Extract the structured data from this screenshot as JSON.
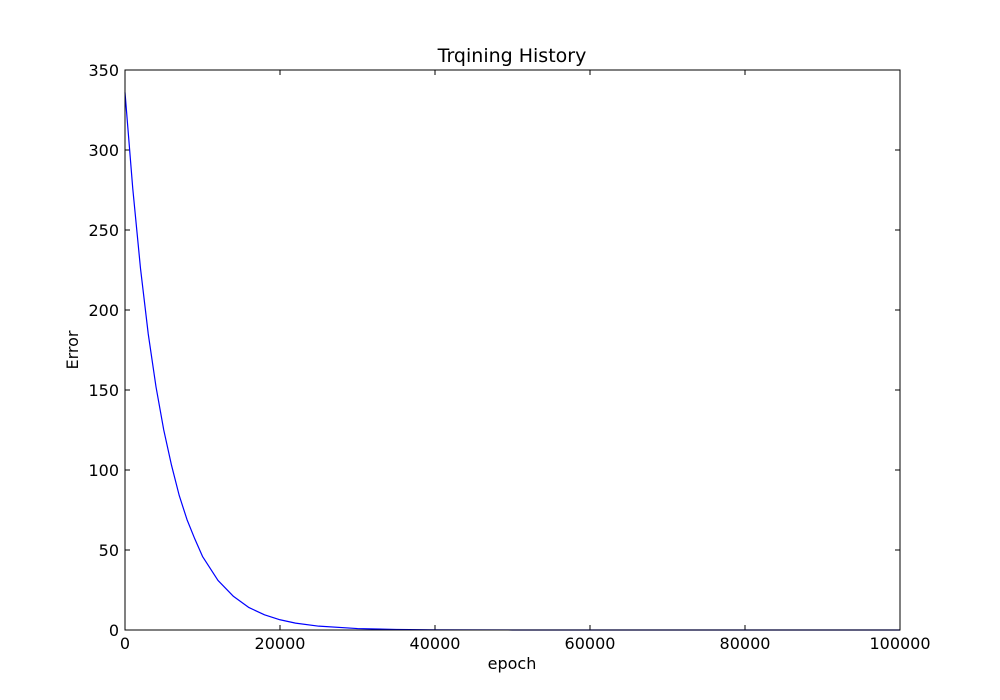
{
  "chart_data": {
    "type": "line",
    "title": "Trqining History",
    "xlabel": "epoch",
    "ylabel": "Error",
    "xlim": [
      0,
      100000
    ],
    "ylim": [
      0,
      350
    ],
    "grid": false,
    "x_ticks": [
      0,
      20000,
      40000,
      60000,
      80000,
      100000
    ],
    "x_tick_labels": [
      "0",
      "20000",
      "40000",
      "60000",
      "80000",
      "100000"
    ],
    "y_ticks": [
      0,
      50,
      100,
      150,
      200,
      250,
      300,
      350
    ],
    "y_tick_labels": [
      "0",
      "50",
      "100",
      "150",
      "200",
      "250",
      "300",
      "350"
    ],
    "series": [
      {
        "color": "#0000ff",
        "x": [
          0,
          1000,
          2000,
          3000,
          4000,
          5000,
          6000,
          7000,
          8000,
          9000,
          10000,
          12000,
          14000,
          16000,
          18000,
          20000,
          22000,
          25000,
          30000,
          35000,
          40000,
          50000,
          60000,
          70000,
          80000,
          90000,
          100000
        ],
        "y": [
          336,
          276,
          226,
          185,
          152,
          125,
          103,
          84,
          69,
          57,
          46,
          31,
          21,
          14,
          9.5,
          6.4,
          4.3,
          2.4,
          0.9,
          0.35,
          0.13,
          0.02,
          0,
          0,
          0,
          0,
          0
        ]
      }
    ]
  }
}
